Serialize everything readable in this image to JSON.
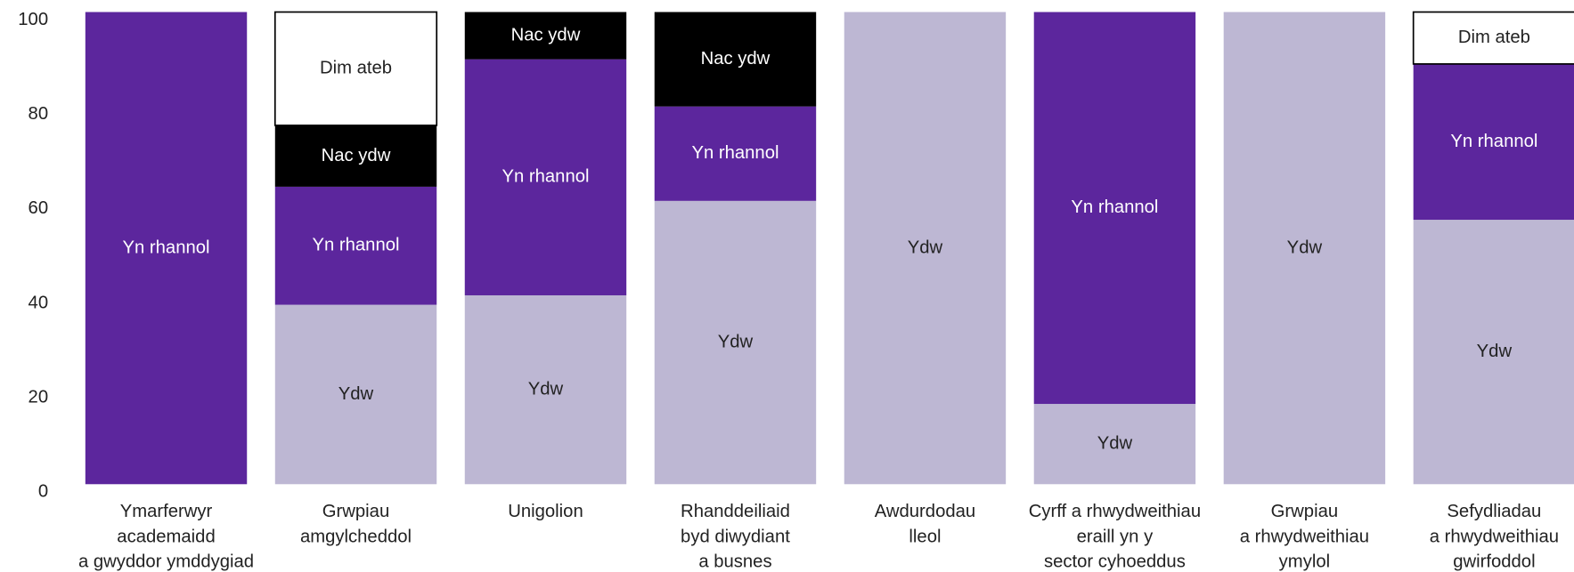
{
  "chart_data": {
    "type": "stacked_bar",
    "categories": [
      [
        "Ymarferwyr",
        "academaidd",
        "a gwyddor ymddygiad"
      ],
      [
        "Grwpiau",
        "amgylcheddol"
      ],
      [
        "Unigolion"
      ],
      [
        "Rhanddeiliaid",
        "byd diwydiant",
        "a busnes"
      ],
      [
        "Awdurdodau",
        "lleol"
      ],
      [
        "Cyrff a rhwydweithiau",
        "eraill yn y",
        "sector cyhoeddus"
      ],
      [
        "Grwpiau",
        "a rhwydweithiau",
        "ymylol"
      ],
      [
        "Sefydliadau",
        "a rhwydweithiau",
        "gwirfoddol"
      ]
    ],
    "series": [
      {
        "name": "Ydw",
        "color": "#bdb7d3",
        "values": [
          0,
          38,
          40,
          60,
          100,
          17,
          100,
          56
        ]
      },
      {
        "name": "Yn rhannol",
        "color": "#5c269d",
        "values": [
          100,
          25,
          50,
          20,
          0,
          83,
          0,
          33
        ]
      },
      {
        "name": "Nac ydw",
        "color": "#000000",
        "values": [
          0,
          13,
          10,
          20,
          0,
          0,
          0,
          0
        ]
      },
      {
        "name": "Dim ateb",
        "color": "#ffffff",
        "values": [
          0,
          24,
          0,
          0,
          0,
          0,
          0,
          11
        ]
      }
    ],
    "ylim": [
      0,
      100
    ],
    "yticks": [
      0,
      20,
      40,
      60,
      80,
      100
    ]
  }
}
